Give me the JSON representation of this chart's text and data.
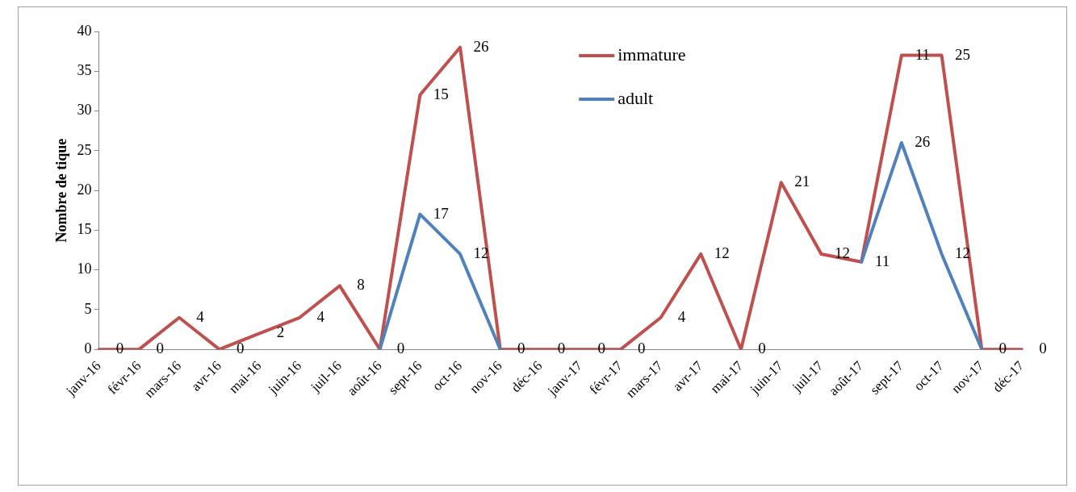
{
  "chart_data": {
    "type": "line",
    "ylabel": "Nombre de tique",
    "categories": [
      "janv-16",
      "févr-16",
      "mars-16",
      "avr-16",
      "mai-16",
      "juin-16",
      "juil-16",
      "août-16",
      "sept-16",
      "oct-16",
      "nov-16",
      "déc-16",
      "janv-17",
      "févr-17",
      "mars-17",
      "avr-17",
      "mai-17",
      "juin-17",
      "juil-17",
      "août-17",
      "sept-17",
      "oct-17",
      "nov-17",
      "déc-17"
    ],
    "series": [
      {
        "name": "immature",
        "color": "#c0504d",
        "values": [
          0,
          0,
          4,
          0,
          2,
          4,
          8,
          0,
          32,
          38,
          0,
          0,
          0,
          0,
          4,
          12,
          0,
          21,
          12,
          11,
          37,
          37,
          0,
          0
        ]
      },
      {
        "name": "adult",
        "color": "#4f81bd",
        "values": [
          null,
          null,
          null,
          null,
          null,
          null,
          null,
          0,
          17,
          12,
          0,
          null,
          null,
          null,
          null,
          null,
          null,
          null,
          null,
          11,
          26,
          12,
          0,
          null
        ]
      }
    ],
    "ylim": [
      0,
      40
    ],
    "yticks": [
      0,
      5,
      10,
      15,
      20,
      25,
      30,
      35,
      40
    ],
    "grid": false,
    "legend": "top right",
    "marker": "none",
    "line_style": "solid",
    "annotations": [
      {
        "text": "0",
        "x": "janv-16",
        "y": 0
      },
      {
        "text": "0",
        "x": "févr-16",
        "y": 0
      },
      {
        "text": "4",
        "x": "mars-16",
        "y": 4
      },
      {
        "text": "0",
        "x": "avr-16",
        "y": 0
      },
      {
        "text": "2",
        "x": "mai-16",
        "y": 2
      },
      {
        "text": "4",
        "x": "juin-16",
        "y": 4
      },
      {
        "text": "8",
        "x": "juil-16",
        "y": 8
      },
      {
        "text": "0",
        "x": "août-16",
        "y": 0
      },
      {
        "text": "15",
        "x": "sept-16",
        "y": 32
      },
      {
        "text": "17",
        "x": "sept-16",
        "y": 17
      },
      {
        "text": "26",
        "x": "oct-16",
        "y": 38
      },
      {
        "text": "12",
        "x": "oct-16",
        "y": 12
      },
      {
        "text": "0",
        "x": "nov-16",
        "y": 0
      },
      {
        "text": "0",
        "x": "déc-16",
        "y": 0
      },
      {
        "text": "0",
        "x": "janv-17",
        "y": 0
      },
      {
        "text": "0",
        "x": "févr-17",
        "y": 0
      },
      {
        "text": "4",
        "x": "mars-17",
        "y": 4
      },
      {
        "text": "12",
        "x": "avr-17",
        "y": 12
      },
      {
        "text": "0",
        "x": "mai-17",
        "y": 0
      },
      {
        "text": "21",
        "x": "juin-17",
        "y": 21
      },
      {
        "text": "12",
        "x": "juil-17",
        "y": 12
      },
      {
        "text": "11",
        "x": "août-17",
        "y": 11
      },
      {
        "text": "11",
        "x": "sept-17",
        "y": 37
      },
      {
        "text": "26",
        "x": "sept-17",
        "y": 26
      },
      {
        "text": "25",
        "x": "oct-17",
        "y": 37
      },
      {
        "text": "12",
        "x": "oct-17",
        "y": 12
      },
      {
        "text": "0",
        "x": "nov-17",
        "y": 0
      },
      {
        "text": "0",
        "x": "déc-17",
        "y": 0
      }
    ]
  }
}
